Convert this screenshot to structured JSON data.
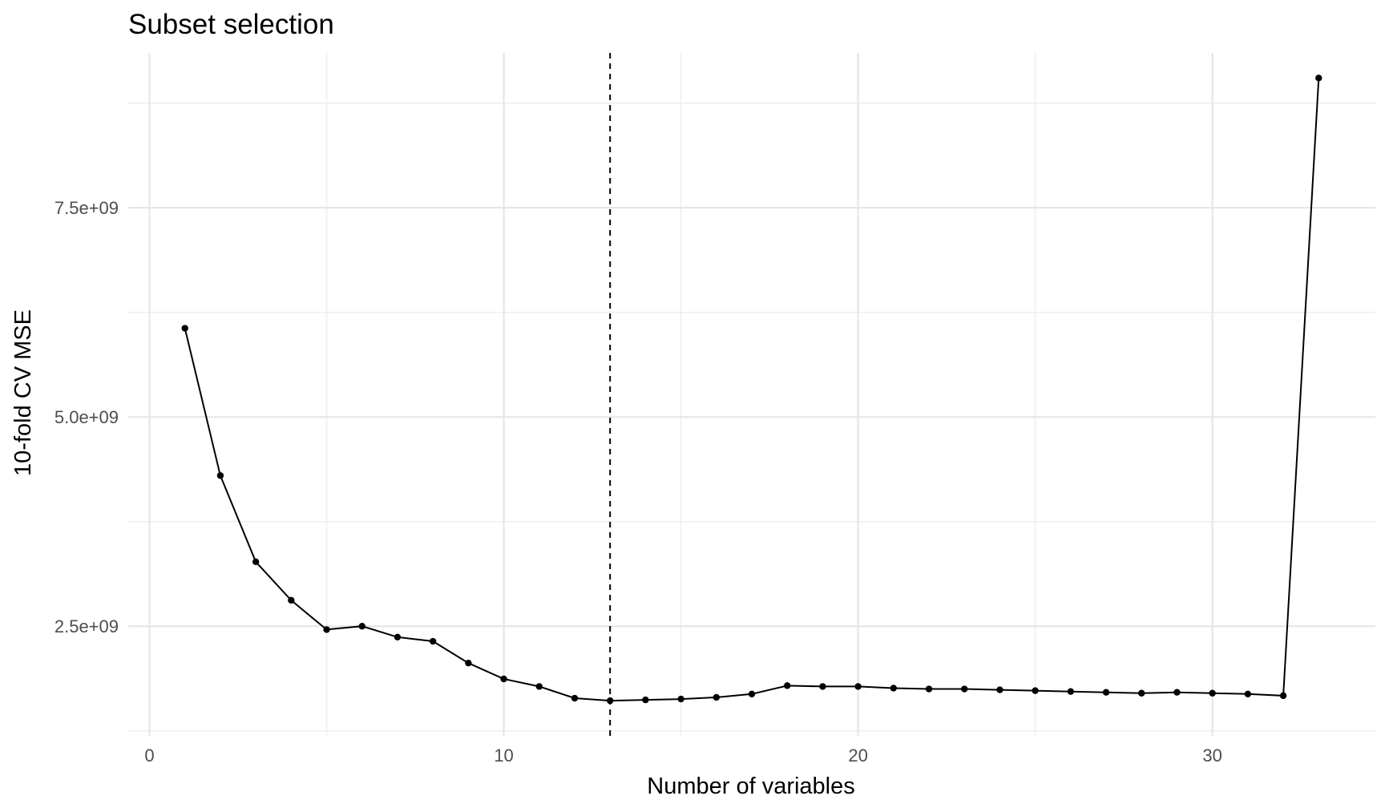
{
  "chart_data": {
    "type": "line",
    "title": "Subset selection",
    "xlabel": "Number of variables",
    "ylabel": "10-fold CV MSE",
    "xlim": [
      -0.6,
      34.6
    ],
    "ylim": [
      1190000000.0,
      9350000000.0
    ],
    "x_ticks": [
      0,
      10,
      20,
      30
    ],
    "x_tick_labels": [
      "0",
      "10",
      "20",
      "30"
    ],
    "y_ticks": [
      2500000000.0,
      5000000000.0,
      7500000000.0
    ],
    "y_tick_labels": [
      "2.5e+09",
      "5.0e+09",
      "7.5e+09"
    ],
    "grid": true,
    "x": [
      1,
      2,
      3,
      4,
      5,
      6,
      7,
      8,
      9,
      10,
      11,
      12,
      13,
      14,
      15,
      16,
      17,
      18,
      19,
      20,
      21,
      22,
      23,
      24,
      25,
      26,
      27,
      28,
      29,
      30,
      31,
      32,
      33
    ],
    "values": [
      6060000000.0,
      4300000000.0,
      3270000000.0,
      2810000000.0,
      2460000000.0,
      2500000000.0,
      2370000000.0,
      2320000000.0,
      2060000000.0,
      1870000000.0,
      1780000000.0,
      1640000000.0,
      1610000000.0,
      1620000000.0,
      1630000000.0,
      1650000000.0,
      1690000000.0,
      1790000000.0,
      1780000000.0,
      1780000000.0,
      1760000000.0,
      1750000000.0,
      1750000000.0,
      1740000000.0,
      1730000000.0,
      1720000000.0,
      1710000000.0,
      1700000000.0,
      1710000000.0,
      1700000000.0,
      1690000000.0,
      1670000000.0,
      9050000000.0
    ],
    "vline_x": 13
  },
  "colors": {
    "line": "#000000",
    "grid": "#ebebeb",
    "text": "#4d4d4d"
  }
}
